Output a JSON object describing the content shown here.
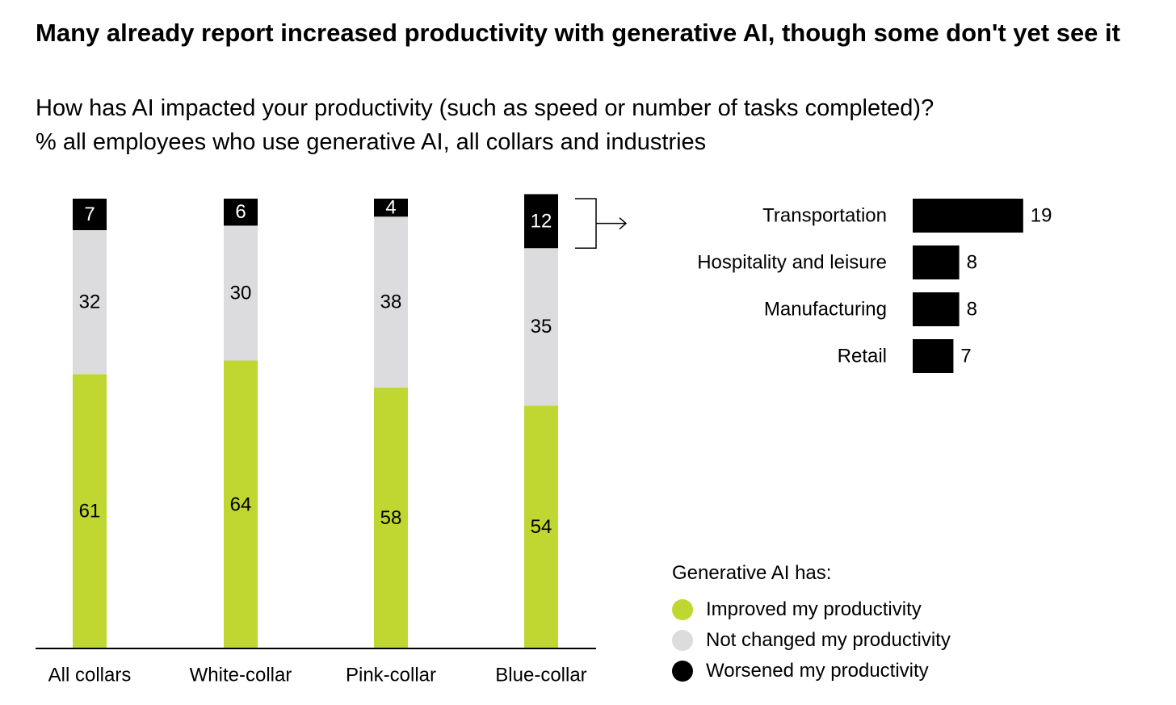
{
  "title": "Many already report increased productivity with generative AI, though some don't yet see it",
  "subtitle": [
    "How has AI impacted your productivity (such as speed or number of tasks completed)?",
    "% all employees who use generative AI, all collars and industries"
  ],
  "colors": {
    "improved": "#bfd730",
    "not_changed": "#dcdcde",
    "worsened": "#000000"
  },
  "chart_data": [
    {
      "type": "bar",
      "stacked": true,
      "categories": [
        "All collars",
        "White-collar",
        "Pink-collar",
        "Blue-collar"
      ],
      "series": [
        {
          "name": "Improved my productivity",
          "values": [
            61,
            64,
            58,
            54
          ]
        },
        {
          "name": "Not changed my productivity",
          "values": [
            32,
            30,
            38,
            35
          ]
        },
        {
          "name": "Worsened my productivity",
          "values": [
            7,
            6,
            4,
            12
          ]
        }
      ],
      "ylim": [
        0,
        100
      ]
    },
    {
      "type": "bar",
      "orientation": "horizontal",
      "categories": [
        "Transportation",
        "Hospitality and leisure",
        "Manufacturing",
        "Retail"
      ],
      "values": [
        19,
        8,
        8,
        7
      ]
    }
  ],
  "legend": {
    "title": "Generative AI has:",
    "items": [
      {
        "label": "Improved my productivity",
        "color": "#bfd730"
      },
      {
        "label": "Not changed my productivity",
        "color": "#dcdcde"
      },
      {
        "label": "Worsened my productivity",
        "color": "#000000"
      }
    ]
  }
}
